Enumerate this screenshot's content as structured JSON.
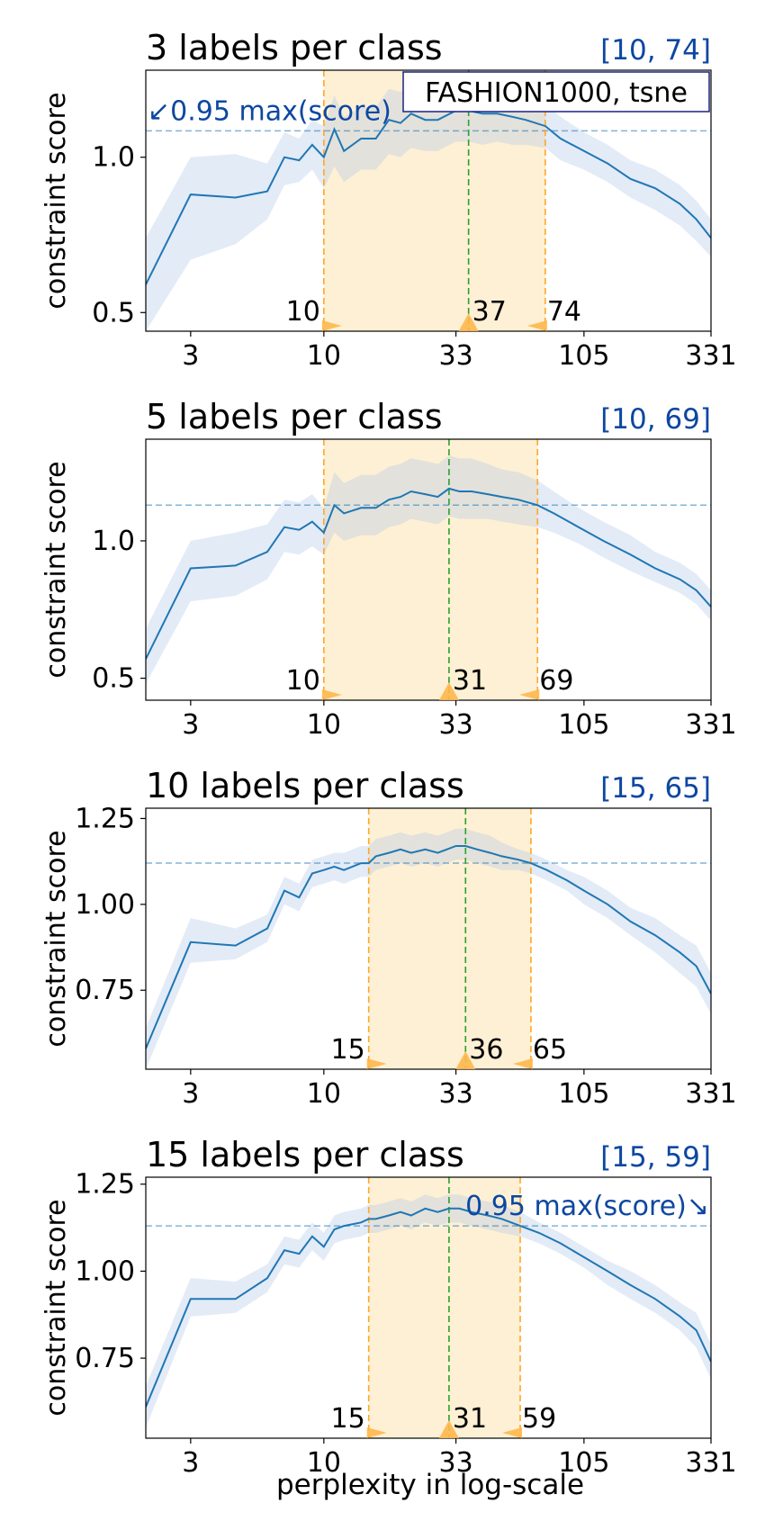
{
  "figure": {
    "xlabel": "perplexity in log-scale",
    "legend_box": "FASHION1000, tsne",
    "colors": {
      "line": "#1f77b4",
      "band": "#aec7e8",
      "range_fill": "#fdf0d5",
      "range_line": "#ffa726",
      "best_line": "#2ca02c",
      "threshold_line": "#1f77b4",
      "accent_text": "#0d47a1",
      "marker": "#ffb74d"
    }
  },
  "chart_data": [
    {
      "type": "line",
      "title": "3 labels per class",
      "range_label": "[10, 74]",
      "ylabel": "constraint score",
      "xlabel": "",
      "xscale": "log",
      "xlim": [
        2,
        331
      ],
      "ylim": [
        0.44,
        1.28
      ],
      "xticks": [
        3,
        10,
        33,
        105,
        331
      ],
      "yticks": [
        0.5,
        1.0
      ],
      "ytick_labels": [
        "0.5",
        "1.0"
      ],
      "threshold": 1.085,
      "threshold_annotation": "↙0.95 max(score)",
      "threshold_annotation_side": "left",
      "range_low": 10,
      "range_high": 74,
      "best": 37,
      "marker_labels": [
        "10",
        "37",
        "74"
      ],
      "legend_box_shown": true,
      "series": [
        {
          "x": [
            2,
            3,
            4.5,
            6,
            7,
            8,
            9,
            10,
            11,
            12,
            14,
            16,
            18,
            20,
            22,
            25,
            28,
            33,
            37,
            42,
            48,
            55,
            62,
            74,
            85,
            105,
            130,
            160,
            200,
            250,
            290,
            331
          ],
          "y": [
            0.59,
            0.88,
            0.87,
            0.89,
            1.0,
            0.99,
            1.04,
            1.0,
            1.09,
            1.02,
            1.06,
            1.06,
            1.12,
            1.11,
            1.14,
            1.12,
            1.12,
            1.15,
            1.15,
            1.14,
            1.14,
            1.13,
            1.12,
            1.1,
            1.06,
            1.02,
            0.98,
            0.93,
            0.9,
            0.85,
            0.8,
            0.74
          ],
          "lower": [
            0.44,
            0.67,
            0.72,
            0.8,
            0.91,
            0.92,
            0.96,
            0.9,
            0.97,
            0.92,
            0.96,
            0.96,
            1.01,
            1.0,
            1.03,
            1.02,
            1.02,
            1.05,
            1.05,
            1.04,
            1.05,
            1.04,
            1.04,
            1.03,
            0.99,
            0.96,
            0.92,
            0.87,
            0.83,
            0.78,
            0.73,
            0.68
          ],
          "upper": [
            0.74,
            1.0,
            1.01,
            0.98,
            1.08,
            1.06,
            1.12,
            1.1,
            1.2,
            1.13,
            1.16,
            1.16,
            1.22,
            1.21,
            1.24,
            1.22,
            1.22,
            1.25,
            1.25,
            1.24,
            1.23,
            1.22,
            1.2,
            1.17,
            1.13,
            1.08,
            1.04,
            0.99,
            0.96,
            0.91,
            0.86,
            0.8
          ]
        }
      ]
    },
    {
      "type": "line",
      "title": "5 labels per class",
      "range_label": "[10, 69]",
      "ylabel": "constraint score",
      "xlabel": "",
      "xscale": "log",
      "xlim": [
        2,
        331
      ],
      "ylim": [
        0.42,
        1.37
      ],
      "xticks": [
        3,
        10,
        33,
        105,
        331
      ],
      "yticks": [
        0.5,
        1.0
      ],
      "ytick_labels": [
        "0.5",
        "1.0"
      ],
      "threshold": 1.13,
      "threshold_annotation": "",
      "threshold_annotation_side": "",
      "range_low": 10,
      "range_high": 69,
      "best": 31,
      "marker_labels": [
        "10",
        "31",
        "69"
      ],
      "legend_box_shown": false,
      "series": [
        {
          "x": [
            2,
            3,
            4.5,
            6,
            7,
            8,
            9,
            10,
            11,
            12,
            14,
            16,
            18,
            20,
            22,
            25,
            28,
            31,
            34,
            38,
            44,
            50,
            58,
            69,
            80,
            100,
            125,
            160,
            200,
            250,
            290,
            331
          ],
          "y": [
            0.57,
            0.9,
            0.91,
            0.96,
            1.05,
            1.04,
            1.07,
            1.03,
            1.13,
            1.1,
            1.12,
            1.12,
            1.15,
            1.16,
            1.18,
            1.17,
            1.16,
            1.19,
            1.18,
            1.18,
            1.17,
            1.16,
            1.15,
            1.13,
            1.1,
            1.05,
            1.0,
            0.95,
            0.9,
            0.86,
            0.82,
            0.76
          ],
          "lower": [
            0.48,
            0.78,
            0.8,
            0.86,
            0.96,
            0.95,
            0.98,
            0.95,
            1.03,
            1.0,
            1.02,
            1.02,
            1.05,
            1.06,
            1.08,
            1.07,
            1.06,
            1.09,
            1.08,
            1.08,
            1.08,
            1.07,
            1.06,
            1.05,
            1.03,
            0.99,
            0.94,
            0.89,
            0.85,
            0.81,
            0.77,
            0.71
          ],
          "upper": [
            0.68,
            1.0,
            1.03,
            1.06,
            1.15,
            1.14,
            1.17,
            1.12,
            1.25,
            1.21,
            1.24,
            1.24,
            1.27,
            1.28,
            1.3,
            1.29,
            1.28,
            1.31,
            1.3,
            1.3,
            1.28,
            1.26,
            1.25,
            1.22,
            1.18,
            1.12,
            1.07,
            1.02,
            0.96,
            0.92,
            0.88,
            0.82
          ]
        }
      ]
    },
    {
      "type": "line",
      "title": "10 labels per class",
      "range_label": "[15, 65]",
      "ylabel": "constraint score",
      "xlabel": "",
      "xscale": "log",
      "xlim": [
        2,
        331
      ],
      "ylim": [
        0.52,
        1.28
      ],
      "xticks": [
        3,
        10,
        33,
        105,
        331
      ],
      "yticks": [
        0.75,
        1.0,
        1.25
      ],
      "ytick_labels": [
        "0.75",
        "1.00",
        "1.25"
      ],
      "threshold": 1.12,
      "threshold_annotation": "",
      "threshold_annotation_side": "",
      "range_low": 15,
      "range_high": 65,
      "best": 36,
      "marker_labels": [
        "15",
        "36",
        "65"
      ],
      "legend_box_shown": false,
      "series": [
        {
          "x": [
            2,
            3,
            4.5,
            6,
            7,
            8,
            9,
            10,
            11,
            12,
            14,
            15,
            16,
            18,
            20,
            22,
            25,
            28,
            33,
            36,
            40,
            45,
            50,
            58,
            65,
            75,
            90,
            105,
            130,
            160,
            200,
            250,
            290,
            331
          ],
          "y": [
            0.58,
            0.89,
            0.88,
            0.93,
            1.04,
            1.02,
            1.09,
            1.1,
            1.11,
            1.1,
            1.12,
            1.12,
            1.14,
            1.15,
            1.16,
            1.15,
            1.16,
            1.15,
            1.17,
            1.17,
            1.16,
            1.15,
            1.14,
            1.13,
            1.12,
            1.1,
            1.07,
            1.04,
            1.0,
            0.95,
            0.91,
            0.86,
            0.82,
            0.74
          ],
          "lower": [
            0.52,
            0.83,
            0.84,
            0.89,
            1.0,
            0.98,
            1.05,
            1.06,
            1.07,
            1.06,
            1.08,
            1.08,
            1.1,
            1.11,
            1.12,
            1.11,
            1.12,
            1.11,
            1.13,
            1.13,
            1.12,
            1.11,
            1.1,
            1.1,
            1.09,
            1.07,
            1.04,
            1.0,
            0.96,
            0.91,
            0.86,
            0.8,
            0.76,
            0.68
          ],
          "upper": [
            0.64,
            0.96,
            0.93,
            0.97,
            1.08,
            1.06,
            1.13,
            1.14,
            1.15,
            1.15,
            1.17,
            1.17,
            1.19,
            1.2,
            1.21,
            1.2,
            1.21,
            1.2,
            1.22,
            1.22,
            1.21,
            1.2,
            1.18,
            1.16,
            1.15,
            1.13,
            1.1,
            1.08,
            1.04,
            0.99,
            0.96,
            0.91,
            0.88,
            0.8
          ]
        }
      ]
    },
    {
      "type": "line",
      "title": "15 labels per class",
      "range_label": "[15, 59]",
      "ylabel": "constraint score",
      "xlabel": "perplexity in log-scale",
      "xscale": "log",
      "xlim": [
        2,
        331
      ],
      "ylim": [
        0.52,
        1.27
      ],
      "xticks": [
        3,
        10,
        33,
        105,
        331
      ],
      "yticks": [
        0.75,
        1.0,
        1.25
      ],
      "ytick_labels": [
        "0.75",
        "1.00",
        "1.25"
      ],
      "threshold": 1.13,
      "threshold_annotation": "0.95 max(score)↘",
      "threshold_annotation_side": "right",
      "range_low": 15,
      "range_high": 59,
      "best": 31,
      "marker_labels": [
        "15",
        "31",
        "59"
      ],
      "legend_box_shown": false,
      "series": [
        {
          "x": [
            2,
            3,
            4.5,
            6,
            7,
            8,
            9,
            10,
            11,
            12,
            14,
            15,
            16,
            18,
            20,
            22,
            25,
            28,
            31,
            34,
            38,
            44,
            50,
            59,
            70,
            85,
            105,
            130,
            160,
            200,
            250,
            290,
            331
          ],
          "y": [
            0.61,
            0.92,
            0.92,
            0.98,
            1.06,
            1.05,
            1.1,
            1.07,
            1.12,
            1.13,
            1.14,
            1.15,
            1.15,
            1.16,
            1.17,
            1.16,
            1.18,
            1.17,
            1.18,
            1.18,
            1.17,
            1.16,
            1.15,
            1.13,
            1.11,
            1.08,
            1.04,
            1.0,
            0.96,
            0.92,
            0.87,
            0.83,
            0.74
          ],
          "lower": [
            0.55,
            0.87,
            0.88,
            0.94,
            1.02,
            1.01,
            1.06,
            1.03,
            1.08,
            1.09,
            1.1,
            1.11,
            1.11,
            1.12,
            1.13,
            1.12,
            1.14,
            1.13,
            1.14,
            1.14,
            1.13,
            1.12,
            1.11,
            1.1,
            1.08,
            1.05,
            1.01,
            0.96,
            0.92,
            0.88,
            0.83,
            0.78,
            0.69
          ],
          "upper": [
            0.67,
            0.98,
            0.97,
            1.02,
            1.1,
            1.09,
            1.14,
            1.11,
            1.16,
            1.17,
            1.18,
            1.19,
            1.19,
            1.2,
            1.21,
            1.2,
            1.22,
            1.21,
            1.22,
            1.22,
            1.21,
            1.2,
            1.19,
            1.17,
            1.14,
            1.11,
            1.07,
            1.03,
            1.0,
            0.96,
            0.91,
            0.88,
            0.79
          ]
        }
      ]
    }
  ]
}
